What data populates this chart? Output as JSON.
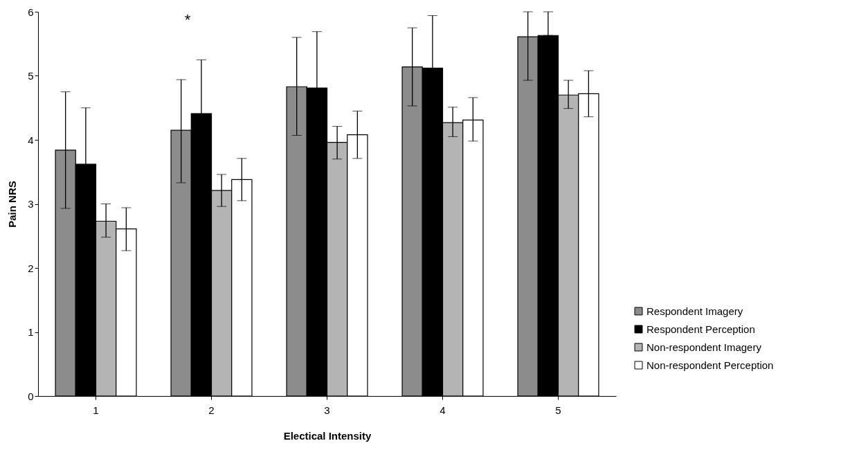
{
  "chart_data": {
    "type": "bar",
    "xlabel": "Electical Intensity",
    "ylabel": "Pain NRS",
    "categories": [
      "1",
      "2",
      "3",
      "4",
      "5"
    ],
    "series": [
      {
        "name": "Respondent Imagery",
        "color": "#8c8c8c",
        "values": [
          3.84,
          4.15,
          4.83,
          5.14,
          5.61
        ],
        "errors": [
          [
            2.93,
            4.75
          ],
          [
            3.33,
            4.94
          ],
          [
            4.07,
            5.6
          ],
          [
            4.53,
            5.75
          ],
          [
            4.93,
            6
          ]
        ]
      },
      {
        "name": "Respondent Perception",
        "color": "#000000",
        "values": [
          3.62,
          4.41,
          4.81,
          5.12,
          5.63
        ],
        "errors": [
          0.88,
          0.84,
          0.88,
          0.82,
          [
            5.63,
            6
          ]
        ]
      },
      {
        "name": "Non-respondent Imagery",
        "color": "#b4b4b4",
        "values": [
          2.73,
          3.21,
          3.96,
          4.27,
          4.7
        ],
        "errors": [
          [
            2.48,
            3.0
          ],
          [
            2.96,
            3.46
          ],
          [
            3.7,
            4.21
          ],
          [
            4.05,
            4.51
          ],
          [
            4.49,
            4.93
          ]
        ]
      },
      {
        "name": "Non-respondent Perception",
        "color": "#ffffff",
        "values": [
          2.61,
          3.38,
          4.08,
          4.31,
          4.72
        ],
        "errors": [
          [
            2.27,
            2.94
          ],
          [
            3.05,
            3.71
          ],
          [
            3.71,
            4.45
          ],
          [
            3.98,
            4.66
          ],
          [
            4.36,
            5.08
          ]
        ]
      }
    ],
    "ylim": [
      0,
      6
    ],
    "yticks": [
      0,
      1,
      2,
      3,
      4,
      5,
      6
    ],
    "grid": false,
    "legend": "right",
    "annotations": [
      "*"
    ]
  }
}
